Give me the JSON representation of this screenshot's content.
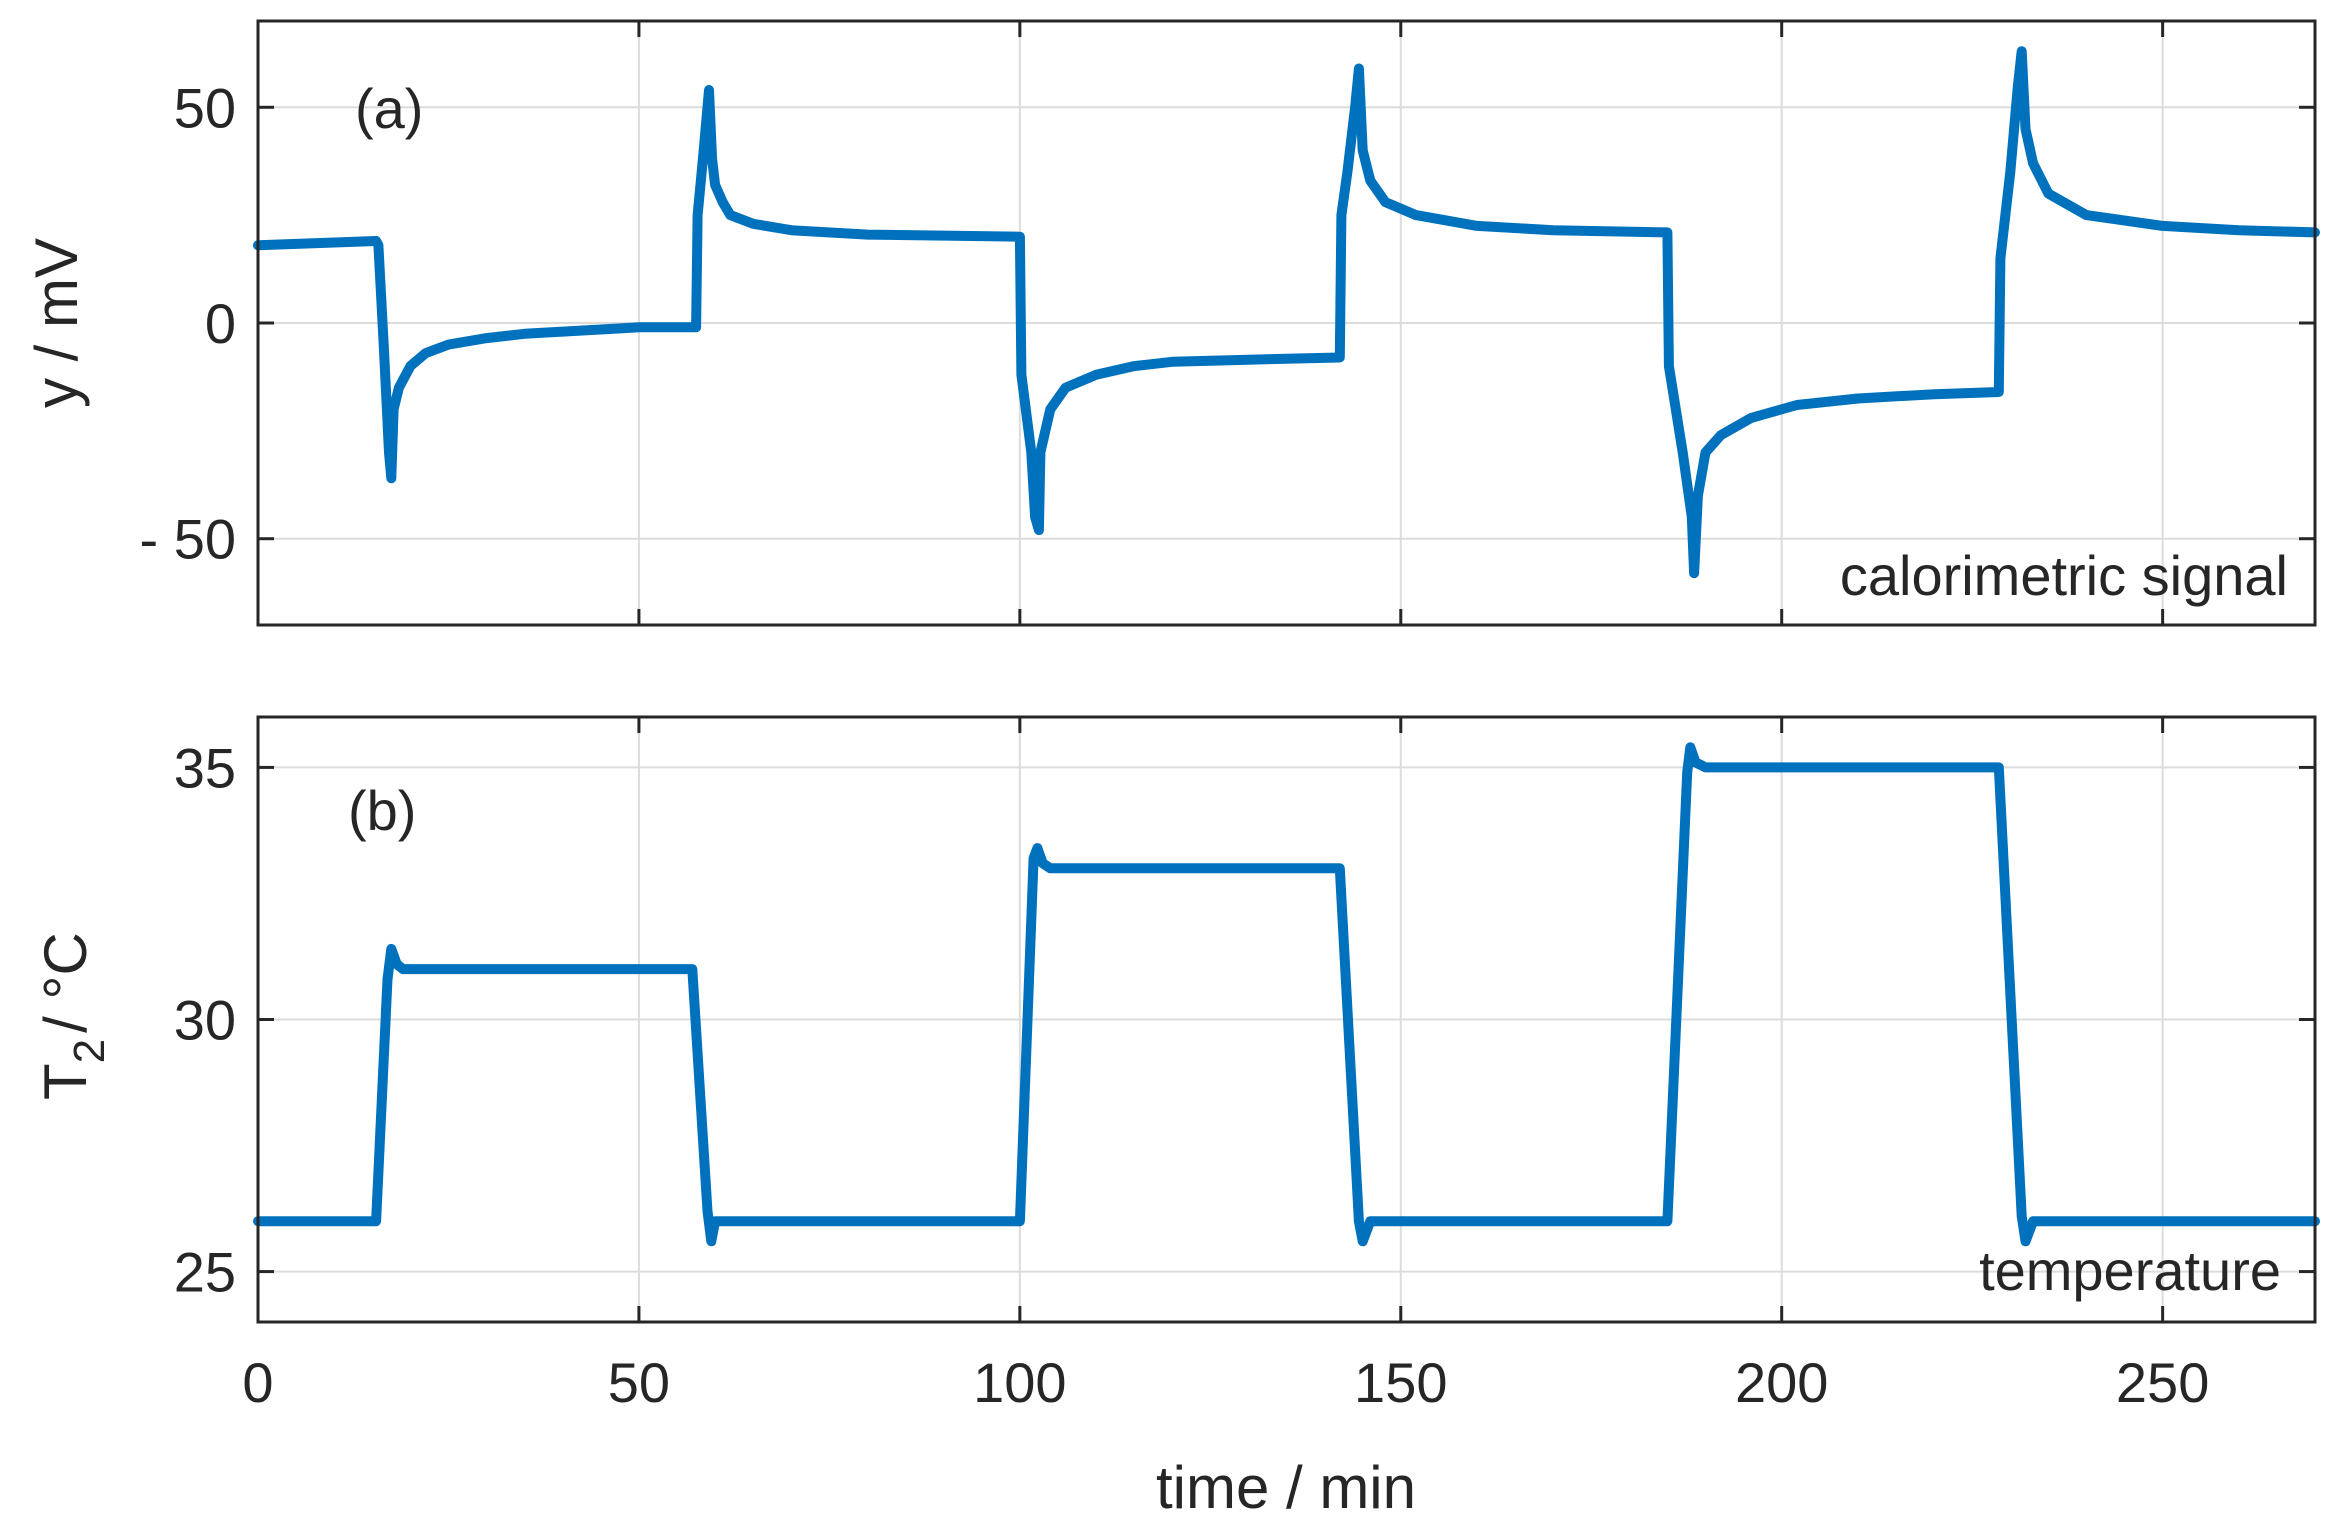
{
  "chart_data": [
    {
      "type": "line",
      "panel_label": "(a)",
      "annotation": "calorimetric signal",
      "xlabel": "",
      "ylabel": "y / mV",
      "xlim": [
        0,
        270
      ],
      "ylim": [
        -70,
        70
      ],
      "xticks": [
        0,
        50,
        100,
        150,
        200,
        250
      ],
      "yticks": [
        50,
        0,
        -50
      ],
      "ytick_labels": [
        "50",
        "0",
        "- 50"
      ],
      "grid": true,
      "color": "#0072BD",
      "series": [
        {
          "name": "calorimetric signal",
          "x": [
            0,
            15.5,
            15.8,
            16.5,
            17.2,
            17.5,
            17.8,
            18.5,
            20,
            22,
            25,
            30,
            35,
            40,
            50,
            57.5,
            57.7,
            58.5,
            59.2,
            59.6,
            60,
            61,
            62,
            65,
            70,
            80,
            100,
            100.2,
            101.5,
            102,
            102.5,
            102.7,
            104,
            106,
            110,
            115,
            120,
            130,
            142,
            142.2,
            143,
            144,
            144.5,
            145,
            146,
            148,
            152,
            160,
            170,
            185,
            185.2,
            187,
            188.2,
            188.5,
            189,
            190,
            192,
            196,
            202,
            210,
            220,
            228.5,
            228.7,
            230,
            231,
            231.5,
            232,
            233,
            235,
            240,
            250,
            260,
            270
          ],
          "y": [
            18,
            19,
            18,
            -5,
            -30,
            -36,
            -20,
            -15,
            -10,
            -7,
            -5,
            -3.5,
            -2.5,
            -2,
            -1,
            -1,
            25,
            40,
            54,
            38,
            32,
            28,
            25,
            23,
            21.5,
            20.5,
            20,
            -12,
            -30,
            -45,
            -48,
            -30,
            -20,
            -15,
            -12,
            -10,
            -9,
            -8.5,
            -8,
            25,
            35,
            50,
            59,
            40,
            33,
            28,
            25,
            22.5,
            21.5,
            21,
            -10,
            -30,
            -45,
            -58,
            -40,
            -30,
            -26,
            -22,
            -19,
            -17.5,
            -16.5,
            -16,
            15,
            35,
            55,
            63,
            45,
            37,
            30,
            25,
            22.5,
            21.5,
            21
          ]
        }
      ]
    },
    {
      "type": "line",
      "panel_label": "(b)",
      "annotation": "temperature",
      "xlabel": "time / min",
      "ylabel_main": "T",
      "ylabel_sub": "2",
      "ylabel_rest": "/ °C",
      "xlim": [
        0,
        270
      ],
      "ylim": [
        24,
        36
      ],
      "xticks": [
        0,
        50,
        100,
        150,
        200,
        250
      ],
      "xtick_labels": [
        "0",
        "50",
        "100",
        "150",
        "200",
        "250"
      ],
      "yticks": [
        35,
        30,
        25
      ],
      "ytick_labels": [
        "35",
        "30",
        "25"
      ],
      "grid": true,
      "color": "#0072BD",
      "series": [
        {
          "name": "temperature",
          "x": [
            0,
            15.5,
            17,
            17.5,
            18.2,
            19,
            20,
            57,
            59,
            59.5,
            60,
            61,
            100,
            101.8,
            102.3,
            103,
            104,
            142,
            144.5,
            145,
            146,
            185,
            187.6,
            188,
            188.7,
            190,
            228.5,
            231.5,
            232,
            233,
            270
          ],
          "y": [
            26,
            26,
            30.8,
            31.4,
            31.1,
            31,
            31,
            31,
            26.2,
            25.6,
            26,
            26,
            26,
            33.2,
            33.4,
            33.1,
            33,
            33,
            26,
            25.6,
            26,
            26,
            34.9,
            35.4,
            35.1,
            35,
            35,
            26.1,
            25.6,
            26,
            26
          ]
        }
      ]
    }
  ]
}
